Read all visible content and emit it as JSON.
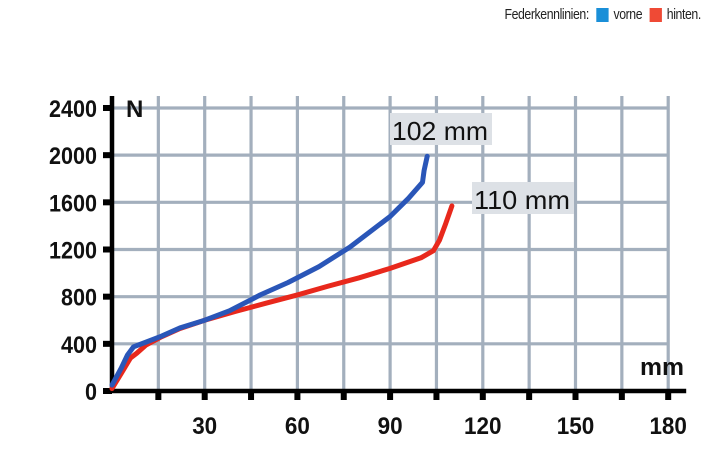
{
  "legend": {
    "title": "Federkennlinien:",
    "items": [
      {
        "label": "vorne",
        "color": "#1a8fd8"
      },
      {
        "label": "hinten.",
        "color": "#ef4a35"
      }
    ]
  },
  "axes": {
    "y_unit": "N",
    "x_unit": "mm",
    "y_ticks": [
      "0",
      "400",
      "800",
      "1200",
      "1600",
      "2000",
      "2400"
    ],
    "x_ticks": [
      "30",
      "60",
      "90",
      "120",
      "150",
      "180"
    ]
  },
  "annotations": {
    "front_travel": "102 mm",
    "rear_travel": "110 mm"
  },
  "colors": {
    "front_line": "#2a56b8",
    "rear_line": "#e8281c",
    "grid": "#a3afbd",
    "axis": "#000000",
    "annotation_bg": "#dde1e6"
  },
  "chart_data": {
    "type": "line",
    "title": "Federkennlinien",
    "xlabel": "mm",
    "ylabel": "N",
    "xlim": [
      0,
      180
    ],
    "ylim": [
      0,
      2400
    ],
    "x_ticks": [
      30,
      60,
      90,
      120,
      150,
      180
    ],
    "y_ticks": [
      0,
      400,
      800,
      1200,
      1600,
      2000,
      2400
    ],
    "grid": true,
    "grid_step": {
      "x": 15,
      "y": 400
    },
    "legend_position": "top-right",
    "series": [
      {
        "name": "vorne",
        "color": "#2a56b8",
        "x": [
          0,
          3,
          5,
          7,
          11,
          16,
          22,
          30,
          38,
          48,
          57,
          67,
          77,
          90,
          96,
          100.5,
          101,
          102
        ],
        "y": [
          50,
          195,
          305,
          375,
          415,
          465,
          535,
          600,
          680,
          815,
          920,
          1055,
          1220,
          1480,
          1635,
          1770,
          1870,
          1990
        ]
      },
      {
        "name": "hinten",
        "color": "#e8281c",
        "x": [
          0,
          3,
          6,
          8,
          11,
          16,
          22,
          30,
          40,
          50,
          60,
          70,
          80,
          90,
          100,
          104,
          106,
          108,
          110
        ],
        "y": [
          20,
          150,
          280,
          320,
          390,
          460,
          530,
          600,
          675,
          745,
          815,
          890,
          960,
          1040,
          1130,
          1190,
          1280,
          1420,
          1570
        ]
      }
    ]
  }
}
